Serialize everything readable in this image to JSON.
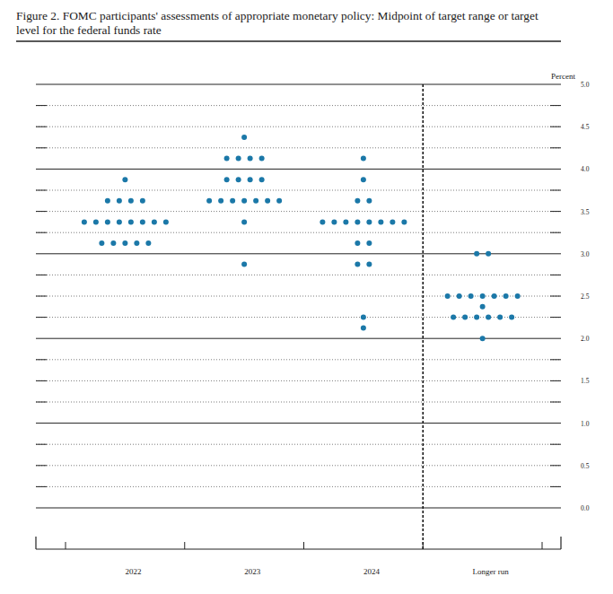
{
  "chart_data": {
    "type": "dot_plot",
    "title": "Figure 2.  FOMC participants' assessments of appropriate monetary policy: Midpoint of target range or target level for the federal funds rate",
    "y_label": "Percent",
    "categories": [
      "2022",
      "2023",
      "2024",
      "Longer run"
    ],
    "values": [
      [
        3.875,
        3.625,
        3.625,
        3.625,
        3.625,
        3.375,
        3.375,
        3.375,
        3.375,
        3.375,
        3.375,
        3.375,
        3.375,
        3.125,
        3.125,
        3.125,
        3.125,
        3.125
      ],
      [
        4.375,
        4.125,
        4.125,
        4.125,
        4.125,
        3.875,
        3.875,
        3.875,
        3.875,
        3.625,
        3.625,
        3.625,
        3.625,
        3.625,
        3.625,
        3.625,
        3.375,
        2.875
      ],
      [
        4.125,
        3.875,
        3.625,
        3.625,
        3.375,
        3.375,
        3.375,
        3.375,
        3.375,
        3.375,
        3.375,
        3.375,
        3.125,
        3.125,
        2.875,
        2.875,
        2.25,
        2.125
      ],
      [
        3,
        3,
        2.5,
        2.5,
        2.5,
        2.5,
        2.5,
        2.5,
        2.5,
        2.375,
        2.25,
        2.25,
        2.25,
        2.25,
        2.25,
        2.25,
        2
      ]
    ],
    "color": "#1b78a8",
    "marker": "circle",
    "ylim": [
      0,
      5
    ],
    "yticks": [
      {
        "value": 0,
        "label": "0.0"
      },
      0.5,
      {
        "value": 1,
        "label": "1.0"
      },
      1.5,
      {
        "value": 2,
        "label": "2.0"
      },
      2.5,
      {
        "value": 3,
        "label": "3.0"
      },
      3.5,
      {
        "value": 4,
        "label": "4.0"
      },
      4.5,
      {
        "value": 5,
        "label": "5.0"
      }
    ],
    "grid": true
  }
}
